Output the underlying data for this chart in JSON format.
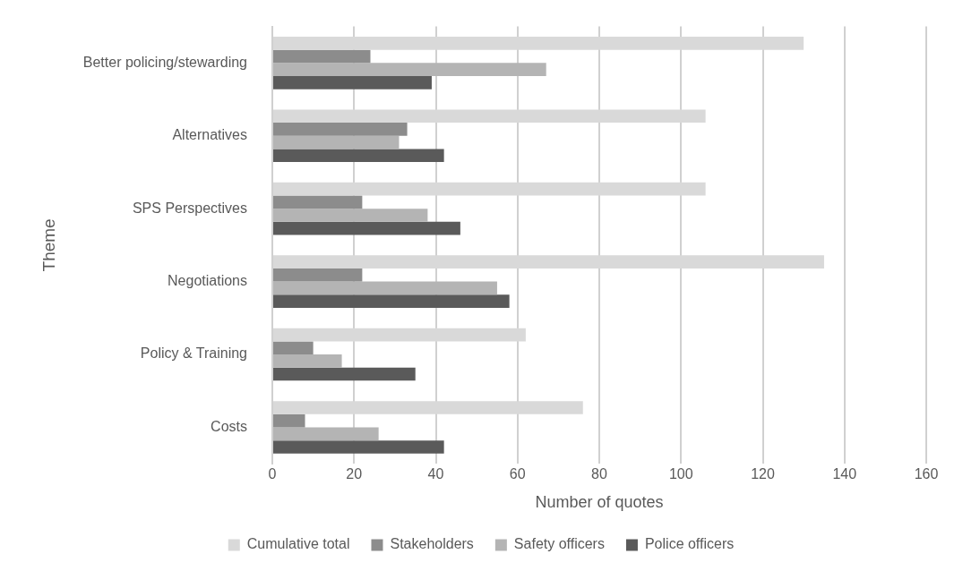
{
  "chart_data": {
    "type": "bar",
    "orientation": "horizontal",
    "xlabel": "Number of quotes",
    "ylabel": "Theme",
    "categories": [
      "Better policing/stewarding",
      "Alternatives",
      "SPS Perspectives",
      "Negotiations",
      "Policy & Training",
      "Costs"
    ],
    "series": [
      {
        "name": "Cumulative total",
        "color": "#d9d9d9",
        "values": [
          130,
          106,
          106,
          135,
          62,
          76
        ]
      },
      {
        "name": "Stakeholders",
        "color": "#8c8c8c",
        "values": [
          24,
          33,
          22,
          22,
          10,
          8
        ]
      },
      {
        "name": "Safety officers",
        "color": "#b4b4b4",
        "values": [
          67,
          31,
          38,
          55,
          17,
          26
        ]
      },
      {
        "name": "Police officers",
        "color": "#5a5a5a",
        "values": [
          39,
          42,
          46,
          58,
          35,
          42
        ]
      }
    ],
    "xlim": [
      0,
      160
    ],
    "xticks": [
      0,
      20,
      40,
      60,
      80,
      100,
      120,
      140,
      160
    ],
    "grid": "x",
    "legend": "bottom"
  }
}
